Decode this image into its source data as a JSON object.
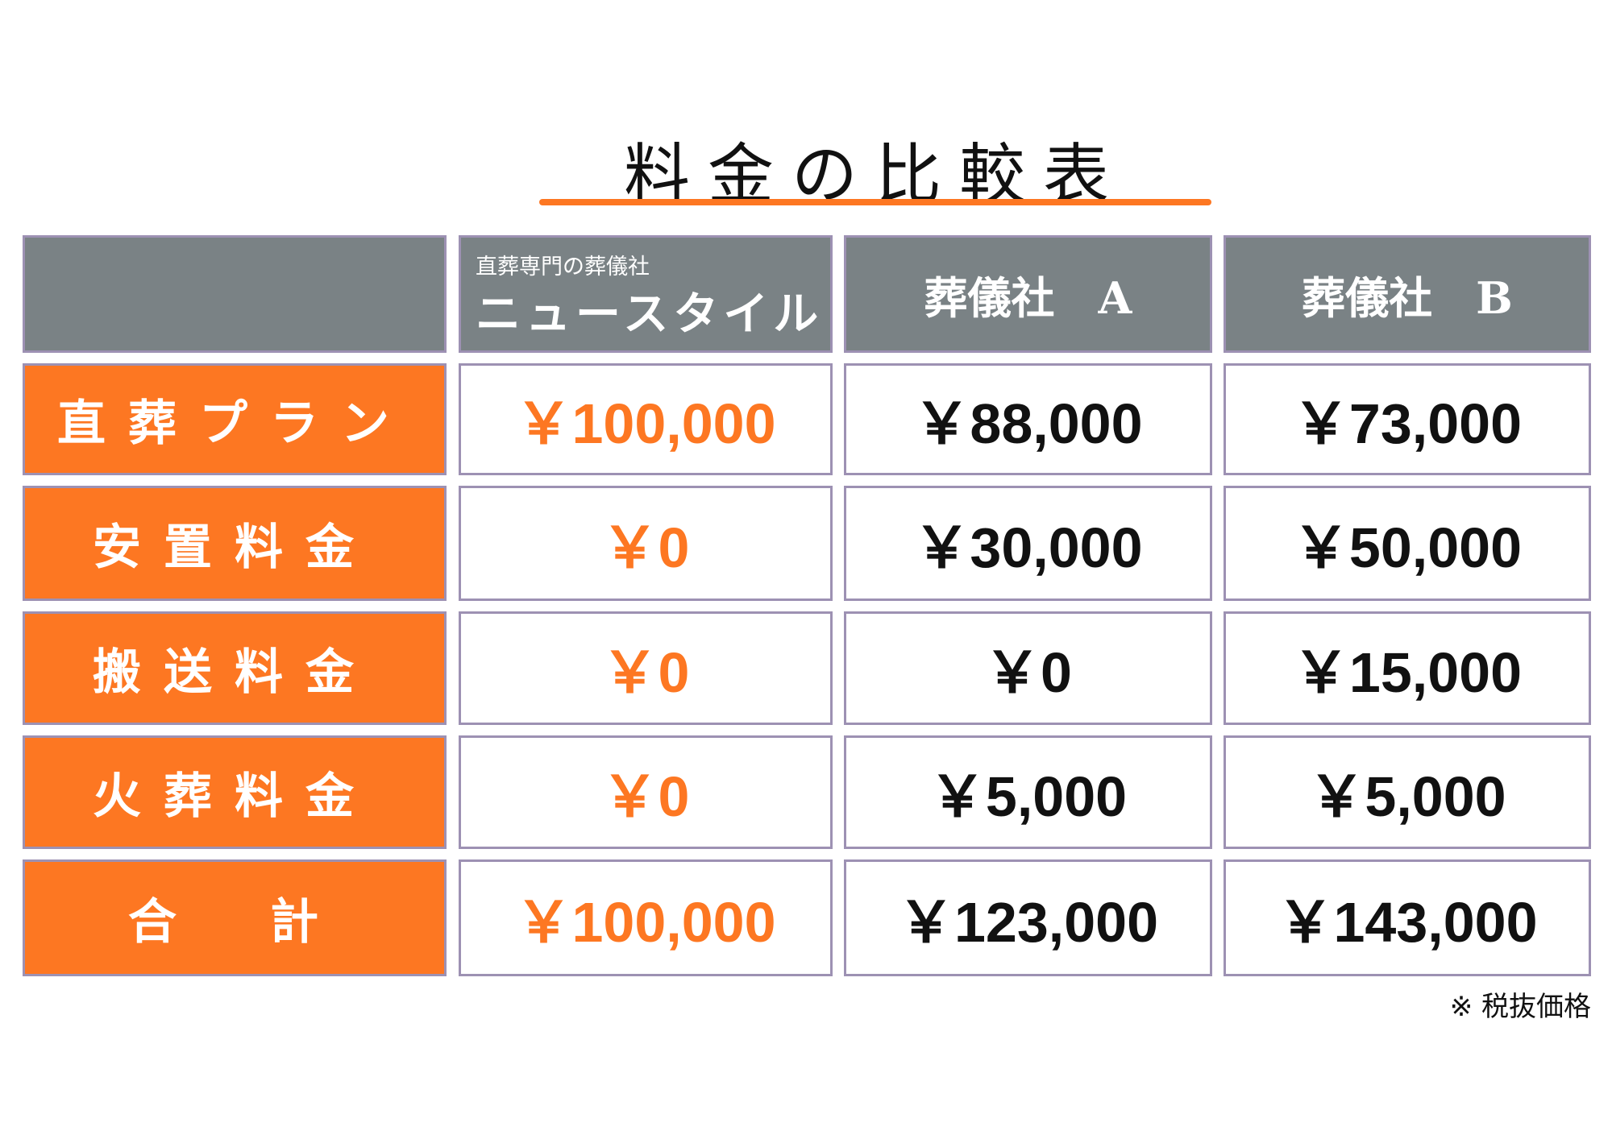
{
  "title": "料金の比較表",
  "colors": {
    "accent": "#fd7722",
    "header_bg": "#7a8285",
    "border": "#9d91b3"
  },
  "header": {
    "col1_sub": "直葬専門の葬儀社",
    "col1": "ニュースタイル",
    "col2": "葬儀社　A",
    "col3": "葬儀社　B"
  },
  "rows": [
    {
      "label": "直葬プラン",
      "values": [
        "￥100,000",
        "￥88,000",
        "￥73,000"
      ]
    },
    {
      "label": "安置料金",
      "values": [
        "￥0",
        "￥30,000",
        "￥50,000"
      ]
    },
    {
      "label": "搬送料金",
      "values": [
        "￥0",
        "￥0",
        "￥15,000"
      ]
    },
    {
      "label": "火葬料金",
      "values": [
        "￥0",
        "￥5,000",
        "￥5,000"
      ]
    },
    {
      "label": "合　計",
      "values": [
        "￥100,000",
        "￥123,000",
        "￥143,000"
      ]
    }
  ],
  "note": "※ 税抜価格"
}
